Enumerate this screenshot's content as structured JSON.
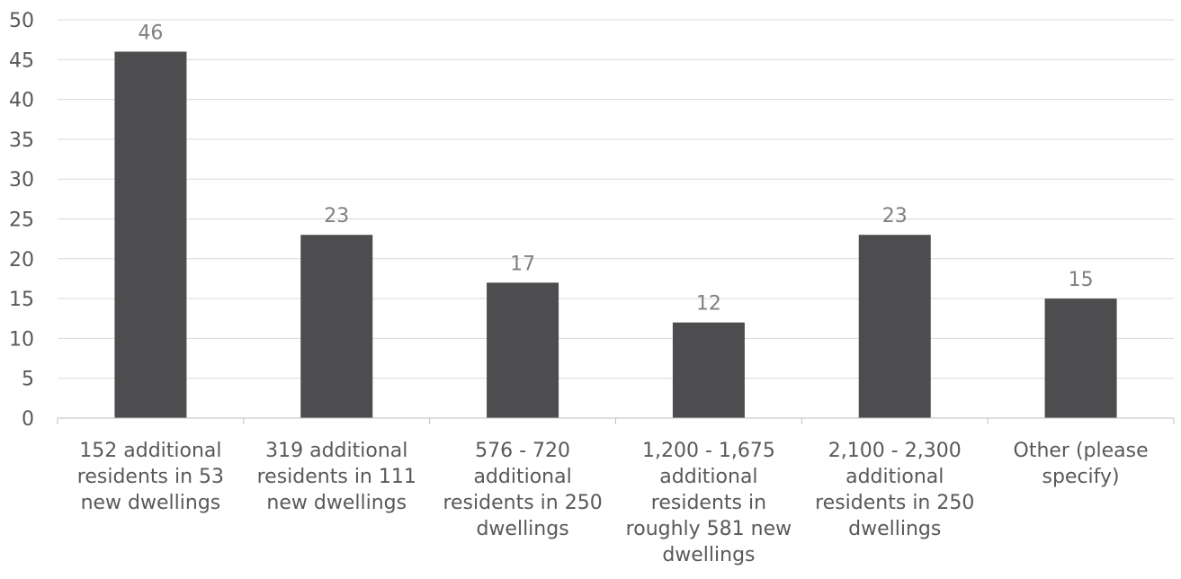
{
  "chart_data": {
    "type": "bar",
    "categories": [
      [
        "152 additional",
        "residents in 53",
        "new dwellings"
      ],
      [
        "319 additional",
        "residents in 111",
        "new dwellings"
      ],
      [
        "576 - 720",
        "additional",
        "residents in 250",
        "dwellings"
      ],
      [
        "1,200 - 1,675",
        "additional",
        "residents in",
        "roughly 581 new",
        "dwellings"
      ],
      [
        "2,100 - 2,300",
        "additional",
        "residents in 250",
        "dwellings"
      ],
      [
        "Other (please",
        "specify)"
      ]
    ],
    "values": [
      46,
      23,
      17,
      12,
      23,
      15
    ],
    "data_labels": [
      "46",
      "23",
      "17",
      "12",
      "23",
      "15"
    ],
    "yticks": [
      "0",
      "5",
      "10",
      "15",
      "20",
      "25",
      "30",
      "35",
      "40",
      "45",
      "50"
    ],
    "ylim": [
      0,
      50
    ],
    "title": "",
    "xlabel": "",
    "ylabel": "",
    "grid": true,
    "legend": "none",
    "bar_color": "#4d4d4f"
  }
}
